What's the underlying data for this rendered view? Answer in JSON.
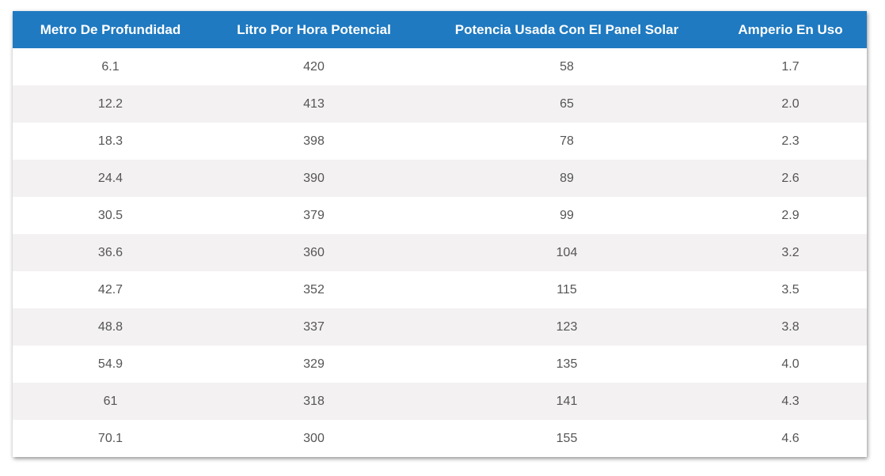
{
  "table": {
    "headers": [
      "Metro De Profundidad",
      "Litro Por Hora Potencial",
      "Potencia Usada Con El Panel Solar",
      "Amperio En Uso"
    ],
    "rows": [
      [
        "6.1",
        "420",
        "58",
        "1.7"
      ],
      [
        "12.2",
        "413",
        "65",
        "2.0"
      ],
      [
        "18.3",
        "398",
        "78",
        "2.3"
      ],
      [
        "24.4",
        "390",
        "89",
        "2.6"
      ],
      [
        "30.5",
        "379",
        "99",
        "2.9"
      ],
      [
        "36.6",
        "360",
        "104",
        "3.2"
      ],
      [
        "42.7",
        "352",
        "115",
        "3.5"
      ],
      [
        "48.8",
        "337",
        "123",
        "3.8"
      ],
      [
        "54.9",
        "329",
        "135",
        "4.0"
      ],
      [
        "61",
        "318",
        "141",
        "4.3"
      ],
      [
        "70.1",
        "300",
        "155",
        "4.6"
      ]
    ]
  },
  "colors": {
    "header_background": "#1f7ac1",
    "header_text": "#ffffff",
    "row_alt_background": "#f3f1f2",
    "cell_text": "#555555"
  }
}
